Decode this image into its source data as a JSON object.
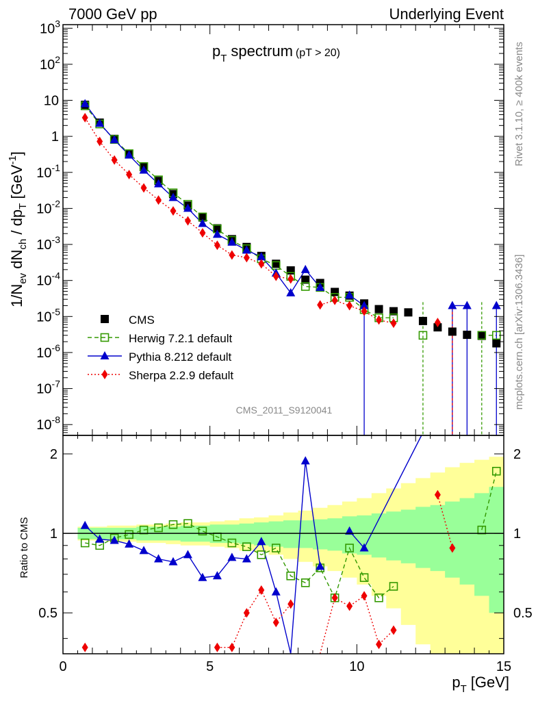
{
  "header": {
    "left": "7000 GeV pp",
    "right": "Underlying Event"
  },
  "side": {
    "rivet": "Rivet 3.1.10, ≥ 400k events",
    "mcplots": "mcplots.cern.ch [arXiv:1306.3436]"
  },
  "chart_data": {
    "type": "line",
    "title_main": "p",
    "title_sub": "T",
    "title_rest": "spectrum",
    "title_cut": "(pT > 20)",
    "watermark": "CMS_2011_S9120041",
    "xlabel": "p",
    "xlabel_sub": "T",
    "xlabel_unit": "[GeV]",
    "ylabel": "1/N_ev dN_ch / dp_T [GeV^-1]",
    "ylabel_parts": {
      "a": "1/N",
      "a_sub": "ev",
      "b": " dN",
      "b_sub": "ch",
      "c": " / dp",
      "c_sub": "T",
      "d": " [GeV",
      "d_sup": "-1",
      "e": "]"
    },
    "ratio_ylabel": "Ratio to CMS",
    "xlim": [
      0,
      15
    ],
    "ylim_log": [
      -8.3,
      3.1
    ],
    "ratio_ylim": [
      0.35,
      2.35
    ],
    "x_ticks": [
      "0",
      "5",
      "10",
      "15"
    ],
    "y_ticks": [
      "10^-8",
      "10^-7",
      "10^-6",
      "10^-5",
      "10^-4",
      "10^-3",
      "10^-2",
      "10^-1",
      "1",
      "10",
      "10^2",
      "10^3"
    ],
    "ratio_ticks": [
      "0.5",
      "1",
      "2"
    ],
    "legend": [
      {
        "name": "CMS",
        "marker": "square-filled",
        "color": "#000000"
      },
      {
        "name": "Herwig 7.2.1 default",
        "marker": "square-open",
        "color": "#339900"
      },
      {
        "name": "Pythia 8.212 default",
        "marker": "triangle",
        "color": "#0000cc"
      },
      {
        "name": "Sherpa 2.2.9 default",
        "marker": "diamond",
        "color": "#ee0000"
      }
    ],
    "x": [
      0.75,
      1.25,
      1.75,
      2.25,
      2.75,
      3.25,
      3.75,
      4.25,
      4.75,
      5.25,
      5.75,
      6.25,
      6.75,
      7.25,
      7.75,
      8.25,
      8.75,
      9.25,
      9.75,
      10.25,
      10.75,
      11.25,
      11.75,
      12.25,
      12.75,
      13.25,
      13.75,
      14.25,
      14.75
    ],
    "series": [
      {
        "name": "CMS",
        "values": [
          7.5,
          2.4,
          0.85,
          0.33,
          0.14,
          0.058,
          0.025,
          0.012,
          0.0056,
          0.0028,
          0.0014,
          0.00085,
          0.00048,
          0.00029,
          0.00019,
          0.000105,
          8.5e-05,
          4.8e-05,
          3.8e-05,
          2.3e-05,
          1.6e-05,
          1.4e-05,
          1.3e-05,
          7.5e-06,
          5e-06,
          3.8e-06,
          3.1e-06,
          2.9e-06,
          1.8e-06
        ]
      },
      {
        "name": "Herwig 7.2.1 default",
        "values": [
          7.0,
          2.2,
          0.82,
          0.33,
          0.145,
          0.062,
          0.027,
          0.013,
          0.0058,
          0.0027,
          0.0013,
          0.00076,
          0.0004,
          0.00026,
          0.00013,
          6.8e-05,
          6.4e-05,
          3.4e-05,
          3.4e-05,
          1.55e-05,
          9.2e-06,
          9.2e-06,
          null,
          3e-06,
          null,
          null,
          null,
          3e-06,
          3e-06
        ]
      },
      {
        "name": "Pythia 8.212 default",
        "values": [
          8.0,
          2.3,
          0.8,
          0.3,
          0.115,
          0.048,
          0.02,
          0.01,
          0.0038,
          0.0019,
          0.00115,
          0.00069,
          0.00045,
          0.00016,
          4.5e-05,
          0.0002,
          6.4e-05,
          null,
          3.9e-05,
          2e-05,
          null,
          null,
          null,
          null,
          null,
          2e-05,
          2e-05,
          null,
          2e-05
        ]
      },
      {
        "name": "Sherpa 2.2.9 default",
        "values": [
          3.3,
          0.72,
          0.22,
          0.087,
          0.037,
          0.017,
          0.0085,
          0.0045,
          0.0021,
          0.00095,
          0.00051,
          0.00043,
          0.00029,
          0.00013,
          0.00011,
          null,
          2.1e-05,
          2.8e-05,
          2e-05,
          1.4e-05,
          8e-06,
          6.5e-06,
          null,
          null,
          6.8e-06,
          null,
          null,
          null,
          null
        ]
      }
    ],
    "ratio": {
      "Herwig 7.2.1 default": [
        0.92,
        0.9,
        0.96,
        0.99,
        1.03,
        1.05,
        1.08,
        1.09,
        1.02,
        0.97,
        0.92,
        0.89,
        0.83,
        0.88,
        0.69,
        0.65,
        0.74,
        0.57,
        0.88,
        0.68,
        0.57,
        0.63,
        null,
        0.34,
        null,
        null,
        null,
        1.03,
        1.72
      ],
      "Pythia 8.212 default": [
        1.07,
        0.95,
        0.94,
        0.91,
        0.86,
        0.8,
        0.78,
        0.83,
        0.68,
        0.69,
        0.81,
        0.8,
        0.93,
        0.6,
        0.24,
        1.88,
        0.75,
        null,
        1.02,
        0.88,
        null,
        null,
        null,
        null,
        null,
        null,
        null,
        null,
        null
      ],
      "Sherpa 2.2.9 default": [
        0.37,
        null,
        null,
        null,
        null,
        null,
        null,
        null,
        null,
        0.37,
        0.37,
        0.5,
        0.61,
        0.46,
        0.54,
        null,
        0.25,
        0.57,
        0.53,
        0.58,
        0.38,
        0.43,
        null,
        null,
        1.4,
        0.88,
        null,
        null,
        null
      ]
    },
    "band_inner": [
      0.05,
      0.05,
      0.05,
      0.05,
      0.06,
      0.06,
      0.06,
      0.07,
      0.07,
      0.08,
      0.08,
      0.09,
      0.1,
      0.11,
      0.12,
      0.12,
      0.13,
      0.14,
      0.16,
      0.17,
      0.19,
      0.21,
      0.23,
      0.26,
      0.28,
      0.32,
      0.36,
      0.42,
      0.5
    ],
    "band_outer": [
      0.06,
      0.06,
      0.07,
      0.07,
      0.08,
      0.08,
      0.09,
      0.1,
      0.1,
      0.11,
      0.12,
      0.14,
      0.15,
      0.17,
      0.2,
      0.22,
      0.25,
      0.28,
      0.32,
      0.36,
      0.42,
      0.48,
      0.55,
      0.62,
      0.7,
      0.78,
      0.85,
      0.9,
      0.95
    ]
  }
}
